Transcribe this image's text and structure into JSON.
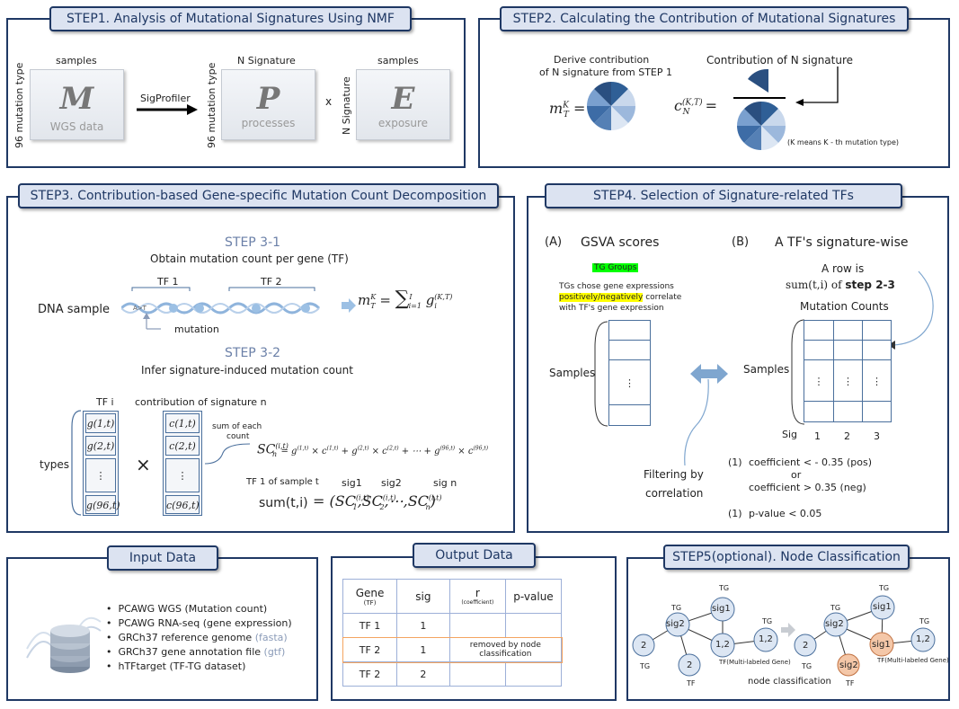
{
  "step1": {
    "title": "STEP1. Analysis of Mutational Signatures Using NMF",
    "samples_top_1": "samples",
    "samples_top_2": "samples",
    "n_signature_top": "N Signature",
    "mut_type_left_1": "96 mutation type",
    "mut_type_left_2": "96 mutation type",
    "n_signature_left": "N Signature",
    "m_letter": "M",
    "m_sub": "WGS data",
    "p_letter": "P",
    "p_sub": "processes",
    "e_letter": "E",
    "e_sub": "exposure",
    "tool": "SigProfiler",
    "times": "x"
  },
  "step2": {
    "title": "STEP2. Calculating the Contribution of Mutational Signatures",
    "derive_line1": "Derive contribution",
    "derive_line2": "of N signature from STEP 1",
    "contribution_label": "Contribution of N signature",
    "k_note": "(K means K - th mutation type)",
    "eq_m": "m",
    "eq_m_sup": "K",
    "eq_m_sub": "T",
    "eq_c": "c",
    "eq_c_sup": "(K,T)",
    "eq_c_sub": "N",
    "eq_equals": "="
  },
  "step3": {
    "title": "STEP3. Contribution-based Gene-specific Mutation Count Decomposition",
    "sub1_title": "STEP 3-1",
    "sub1_desc": "Obtain mutation count per gene (TF)",
    "tf1": "TF 1",
    "tf2": "TF 2",
    "dna_sample": "DNA sample",
    "a_to_t": "A>T",
    "mutation": "mutation",
    "sum_eq": "m",
    "sub2_title": "STEP 3-2",
    "sub2_desc": "Infer signature-induced mutation count",
    "tf_i": "TF i",
    "contribution_n": "contribution of signature n",
    "types": "types",
    "sum_each_1": "sum of each",
    "sum_each_2": "count",
    "tf1_sample": "TF 1 of sample t",
    "sig1": "sig1",
    "sig2": "sig2",
    "sign": "sig n",
    "sum_label": "sum(t,i)",
    "times": "×",
    "dots": "⋮",
    "g_labels": [
      "g(1,t)",
      "g(2,t)",
      "⋮",
      "g(96,t)"
    ],
    "c_labels": [
      "c(1,t)",
      "c(2,t)",
      "⋮",
      "c(96,t)"
    ]
  },
  "step4": {
    "title": "STEP4. Selection of Signature-related TFs",
    "a_label": "(A)",
    "a_title": "GSVA scores",
    "b_label": "(B)",
    "b_title": "A TF's signature-wise",
    "tg_groups": "TG Groups",
    "tg_desc_1": "TGs chose gene expressions",
    "tg_desc_2_hl": "positively/negatively",
    "tg_desc_2_rest": " correlate",
    "tg_desc_3": "with TF's gene expression",
    "samples_a": "Samples",
    "samples_b": "Samples",
    "row_is_1": "A row is",
    "row_is_2a": "sum(t,i) of ",
    "row_is_2b": "step 2-3",
    "mutation_counts": "Mutation Counts",
    "sig": "Sig",
    "cols": [
      "1",
      "2",
      "3"
    ],
    "filtering_1": "Filtering by",
    "filtering_2": "correlation",
    "cond1_num": "(1)",
    "cond1_a": "coefficient < - 0.35 (pos)",
    "cond1_or": "or",
    "cond1_b": "coefficient > 0.35 (neg)",
    "cond2_num": "(1)",
    "cond2": "p-value < 0.05",
    "dots": "⋮"
  },
  "input": {
    "title": "Input Data",
    "items": [
      {
        "text": "PCAWG WGS (Mutation count)",
        "extra": ""
      },
      {
        "text": "PCAWG RNA-seq (gene expression)",
        "extra": ""
      },
      {
        "text": "GRCh37 reference genome ",
        "extra": "(fasta)"
      },
      {
        "text": "GRCh37 gene annotation file ",
        "extra": "(gtf)"
      },
      {
        "text": "hTFtarget (TF-TG dataset)",
        "extra": ""
      }
    ]
  },
  "output": {
    "title": "Output Data",
    "headers": [
      "Gene",
      "sig",
      "r",
      "p-value"
    ],
    "header_subs": [
      "(TF)",
      "",
      "(coefficient)",
      ""
    ],
    "rows": [
      [
        "TF 1",
        "1",
        "",
        ""
      ],
      [
        "TF 2",
        "1",
        "",
        ""
      ],
      [
        "TF 2",
        "2",
        "",
        ""
      ]
    ],
    "removed_note": "removed by node classification"
  },
  "step5": {
    "title": "STEP5(optional). Node Classification",
    "tg": "TG",
    "tf": "TF",
    "tf_multi": "TF(Multi-labeled Gene)",
    "node_classification": "node classification",
    "sig1": "sig1",
    "sig2": "sig2",
    "n2": "2",
    "n12": "1,2"
  },
  "colors": {
    "navy": "#1f3864",
    "title_bg": "#dce3f1",
    "steel": "#4a6f9c",
    "light_blue": "#9db0d8",
    "highlight_yellow": "#ffff00",
    "highlight_green": "#00ff00",
    "orange_node": "#f4c7a8",
    "orange_row": "#f4a460"
  }
}
